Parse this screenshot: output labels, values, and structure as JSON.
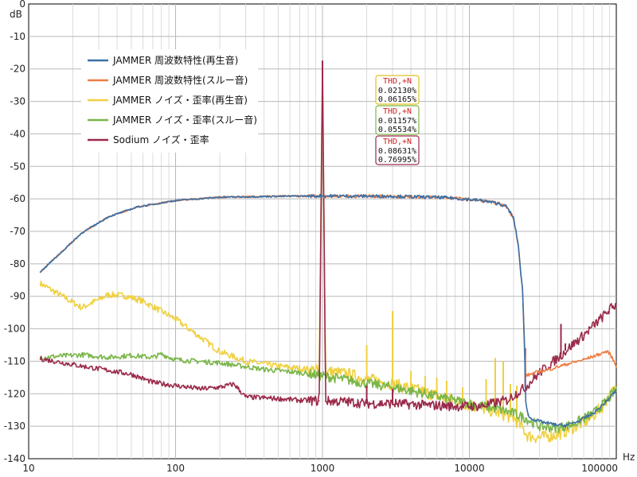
{
  "chart_data": {
    "type": "line",
    "xscale": "log",
    "xlim": [
      10,
      100000
    ],
    "ylim": [
      -140,
      0
    ],
    "xunit": "Hz",
    "yunit": "dB",
    "grid": true,
    "legend_position": "top-left",
    "x_tick_labels": [
      "10",
      "100",
      "1000",
      "10000",
      "100000"
    ],
    "y_tick_labels": [
      "0",
      "-10",
      "-20",
      "-30",
      "-40",
      "-50",
      "-60",
      "-70",
      "-80",
      "-90",
      "-100",
      "-110",
      "-120",
      "-130",
      "-140"
    ],
    "series": [
      {
        "name": "JAMMER 周波数特性(再生音)",
        "color": "#3a6fa6",
        "points": [
          [
            12,
            -82.5
          ],
          [
            23,
            -70.5
          ],
          [
            35,
            -65.5
          ],
          [
            55,
            -62.5
          ],
          [
            100,
            -60.5
          ],
          [
            200,
            -59.5
          ],
          [
            500,
            -59.2
          ],
          [
            1000,
            -59.1
          ],
          [
            3000,
            -59.2
          ],
          [
            7000,
            -59.6
          ],
          [
            12000,
            -60.5
          ],
          [
            16000,
            -61.5
          ],
          [
            18000,
            -62.5
          ],
          [
            20000,
            -66.0
          ],
          [
            21500,
            -74.0
          ],
          [
            22500,
            -84.0
          ],
          [
            23000,
            -88.0
          ],
          [
            23800,
            -108.0
          ],
          [
            24200,
            -122.0
          ],
          [
            25000,
            -126.5
          ],
          [
            26000,
            -127.5
          ],
          [
            30000,
            -128.5
          ],
          [
            38000,
            -129.5
          ],
          [
            45000,
            -129.8
          ],
          [
            55000,
            -128.5
          ],
          [
            70000,
            -126.0
          ],
          [
            85000,
            -122.5
          ],
          [
            100000,
            -119.0
          ]
        ]
      },
      {
        "name": "JAMMER 周波数特性(スルー音)",
        "color": "#ed7d43",
        "points": [
          [
            12,
            -82.5
          ],
          [
            23,
            -70.5
          ],
          [
            35,
            -65.5
          ],
          [
            55,
            -62.5
          ],
          [
            100,
            -60.5
          ],
          [
            200,
            -59.5
          ],
          [
            500,
            -59.2
          ],
          [
            1000,
            -59.1
          ],
          [
            3000,
            -59.2
          ],
          [
            7000,
            -59.6
          ],
          [
            12000,
            -60.5
          ],
          [
            16000,
            -61.5
          ],
          [
            18000,
            -62.5
          ],
          [
            20000,
            -66.0
          ],
          [
            21500,
            -74.0
          ],
          [
            22500,
            -84.0
          ],
          [
            23000,
            -88.0
          ],
          [
            23800,
            -106.0
          ],
          [
            24200,
            -114.5
          ],
          [
            28000,
            -113.5
          ],
          [
            35000,
            -112.5
          ],
          [
            45000,
            -111.0
          ],
          [
            60000,
            -109.5
          ],
          [
            75000,
            -108.0
          ],
          [
            85000,
            -107.0
          ],
          [
            90000,
            -107.5
          ],
          [
            95000,
            -109.5
          ],
          [
            100000,
            -111.5
          ]
        ]
      },
      {
        "name": "JAMMER ノイズ・歪率(再生音)",
        "color": "#f0d040",
        "points": [
          [
            12,
            -86.0
          ],
          [
            23,
            -93.5
          ],
          [
            35,
            -89.5
          ],
          [
            45,
            -89.8
          ],
          [
            60,
            -91.5
          ],
          [
            100,
            -97.0
          ],
          [
            200,
            -107.0
          ],
          [
            300,
            -110.0
          ],
          [
            500,
            -111.5
          ],
          [
            800,
            -112.5
          ],
          [
            950,
            -113.0
          ],
          [
            1000,
            -20.0
          ],
          [
            1050,
            -113.0
          ],
          [
            1500,
            -114.0
          ],
          [
            2000,
            -115.5
          ],
          [
            3000,
            -117.0
          ],
          [
            5000,
            -119.5
          ],
          [
            7000,
            -121.5
          ],
          [
            10000,
            -123.5
          ],
          [
            15000,
            -125.5
          ],
          [
            20000,
            -127.5
          ],
          [
            23000,
            -130.5
          ],
          [
            25000,
            -133.0
          ],
          [
            30000,
            -133.5
          ],
          [
            40000,
            -132.5
          ],
          [
            50000,
            -130.5
          ],
          [
            65000,
            -128.0
          ],
          [
            80000,
            -124.0
          ],
          [
            90000,
            -120.5
          ],
          [
            100000,
            -118.5
          ]
        ],
        "spikes": [
          [
            1000,
            -20.0
          ],
          [
            2000,
            -105.0
          ],
          [
            3000,
            -94.5
          ],
          [
            4000,
            -113.0
          ],
          [
            5000,
            -114.5
          ],
          [
            6000,
            -115.0
          ],
          [
            7000,
            -116.0
          ],
          [
            9000,
            -118.0
          ],
          [
            13000,
            -115.5
          ],
          [
            15000,
            -109.0
          ],
          [
            17000,
            -110.0
          ],
          [
            19000,
            -117.0
          ],
          [
            21000,
            -117.5
          ]
        ]
      },
      {
        "name": "JAMMER ノイズ・歪率(スルー音)",
        "color": "#7ab648",
        "points": [
          [
            12,
            -108.8
          ],
          [
            23,
            -108.0
          ],
          [
            35,
            -108.8
          ],
          [
            50,
            -108.2
          ],
          [
            70,
            -108.8
          ],
          [
            80,
            -107.8
          ],
          [
            100,
            -109.5
          ],
          [
            200,
            -110.5
          ],
          [
            400,
            -112.5
          ],
          [
            700,
            -113.5
          ],
          [
            1000,
            -114.5
          ],
          [
            1500,
            -115.8
          ],
          [
            2000,
            -116.8
          ],
          [
            3000,
            -118.0
          ],
          [
            5000,
            -120.0
          ],
          [
            7000,
            -121.5
          ],
          [
            10000,
            -123.0
          ],
          [
            15000,
            -124.5
          ],
          [
            20000,
            -126.0
          ],
          [
            24000,
            -127.5
          ],
          [
            30000,
            -130.0
          ],
          [
            40000,
            -130.5
          ],
          [
            50000,
            -129.5
          ],
          [
            70000,
            -126.0
          ],
          [
            85000,
            -122.5
          ],
          [
            100000,
            -118.5
          ]
        ]
      },
      {
        "name": "Sodium ノイズ・歪率",
        "color": "#9a2a4a",
        "points": [
          [
            12,
            -109.2
          ],
          [
            23,
            -111.5
          ],
          [
            35,
            -112.8
          ],
          [
            50,
            -114.0
          ],
          [
            70,
            -116.5
          ],
          [
            100,
            -117.5
          ],
          [
            150,
            -118.5
          ],
          [
            200,
            -118.0
          ],
          [
            250,
            -117.0
          ],
          [
            300,
            -121.0
          ],
          [
            500,
            -121.5
          ],
          [
            700,
            -122.0
          ],
          [
            950,
            -122.2
          ],
          [
            1000,
            -17.5
          ],
          [
            1050,
            -122.2
          ],
          [
            1500,
            -122.5
          ],
          [
            2000,
            -123.0
          ],
          [
            3000,
            -123.0
          ],
          [
            5000,
            -123.5
          ],
          [
            8000,
            -123.8
          ],
          [
            12000,
            -123.8
          ],
          [
            18000,
            -122.0
          ],
          [
            24000,
            -118.0
          ],
          [
            30000,
            -113.5
          ],
          [
            40000,
            -109.0
          ],
          [
            50000,
            -105.0
          ],
          [
            60000,
            -102.0
          ],
          [
            70000,
            -99.0
          ],
          [
            80000,
            -96.5
          ],
          [
            90000,
            -94.0
          ],
          [
            100000,
            -92.5
          ]
        ],
        "spikes": [
          [
            1000,
            -17.5
          ],
          [
            2000,
            -117.5
          ],
          [
            3000,
            -118.5
          ],
          [
            24000,
            -106.0
          ],
          [
            42000,
            -98.5
          ],
          [
            45000,
            -104.5
          ]
        ]
      }
    ],
    "annotations": [
      {
        "title": "THD,+N",
        "values": [
          "0.02130%",
          "0.06165%"
        ],
        "border_color": "#e0c020",
        "title_color": "#cc2020"
      },
      {
        "title": "THD,+N",
        "values": [
          "0.01157%",
          "0.05534%"
        ],
        "border_color": "#7ab648",
        "title_color": "#cc2020"
      },
      {
        "title": "THD,+N",
        "values": [
          "0.08631%",
          "0.76995%"
        ],
        "border_color": "#9a2a4a",
        "title_color": "#cc2020"
      }
    ]
  }
}
